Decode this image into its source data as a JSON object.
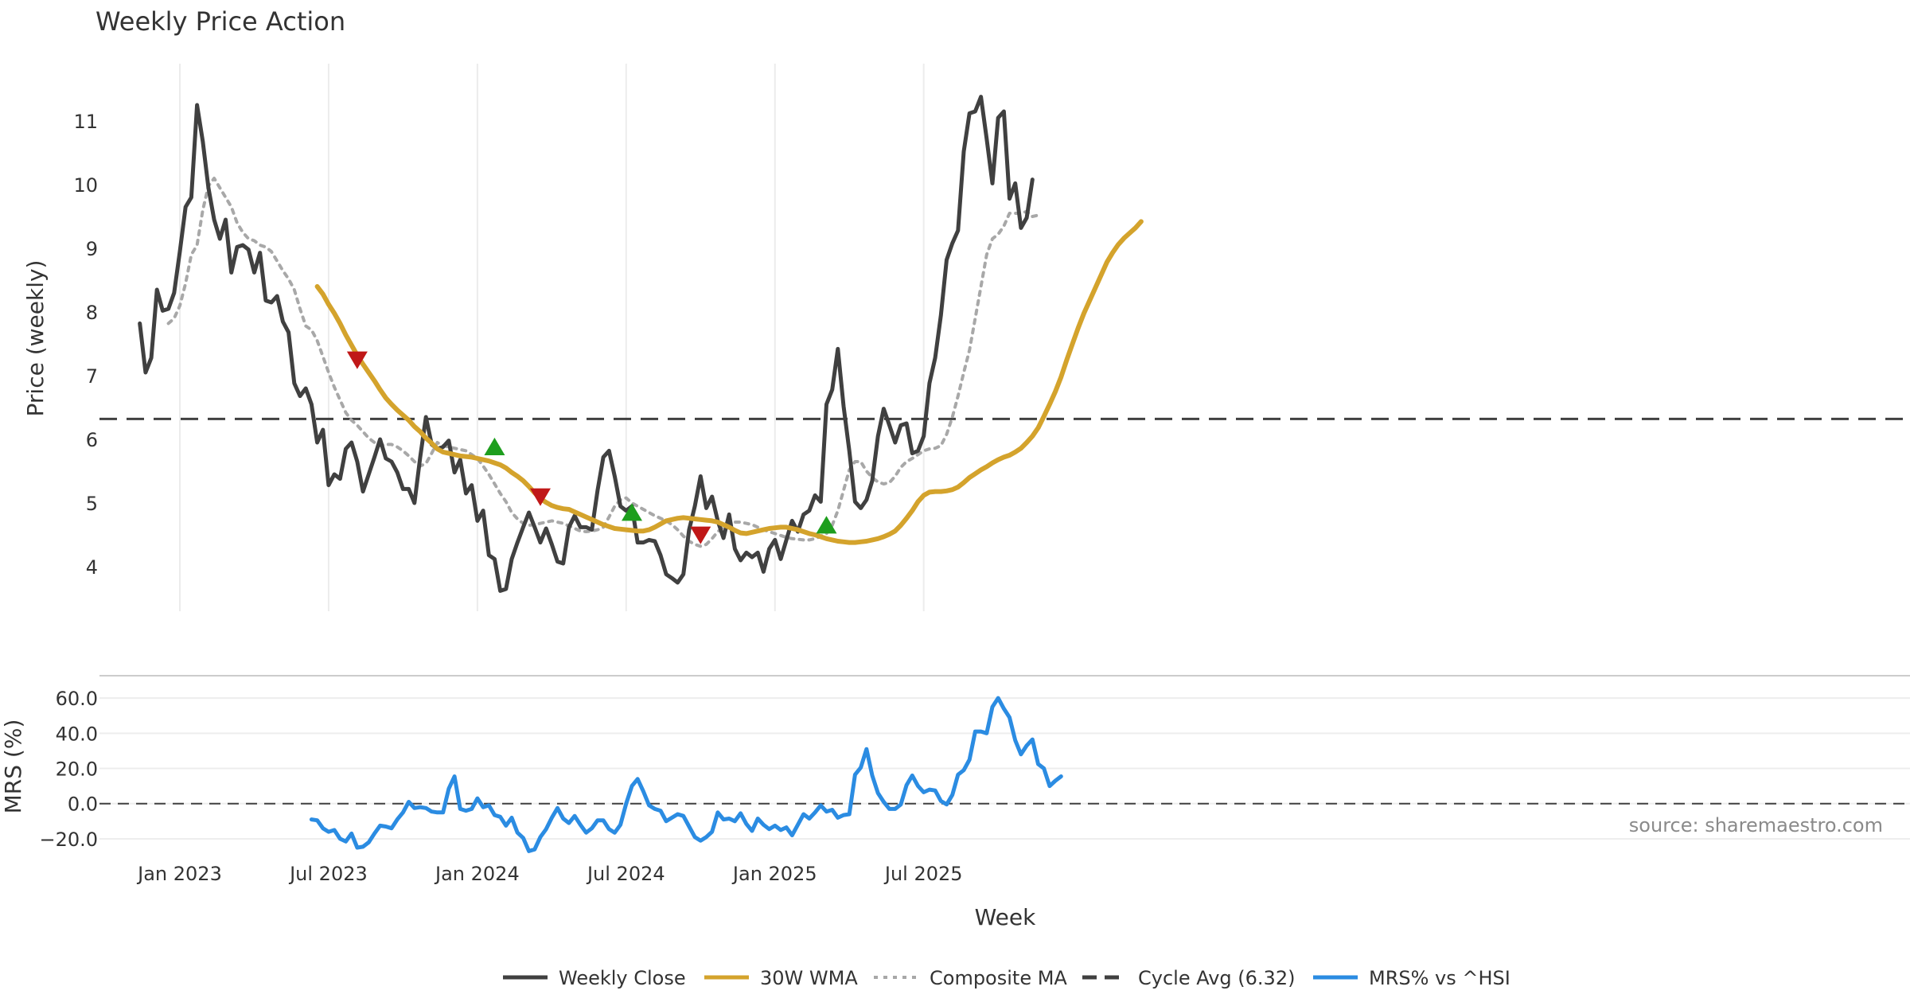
{
  "chart_data": {
    "type": "line",
    "title": "Weekly Price Action",
    "source_text": "source: sharemaestro.com",
    "xlabel": "Week",
    "x_ticks": [
      "Jan 2023",
      "Jul 2023",
      "Jan 2024",
      "Jul 2024",
      "Jan 2025",
      "Jul 2025"
    ],
    "price_panel": {
      "ylabel": "Price (weekly)",
      "ylim": [
        3.3,
        11.9
      ],
      "y_ticks": [
        "4",
        "5",
        "6",
        "7",
        "8",
        "9",
        "10",
        "11"
      ],
      "cycle_avg": 6.32,
      "series": [
        {
          "name": "Weekly Close",
          "color": "#404040",
          "start_week": -7,
          "values": [
            7.82,
            7.05,
            7.28,
            8.35,
            8.02,
            8.05,
            8.3,
            8.95,
            9.65,
            9.8,
            11.25,
            10.68,
            9.95,
            9.45,
            9.15,
            9.45,
            8.62,
            9.02,
            9.05,
            8.98,
            8.62,
            8.93,
            8.18,
            8.15,
            8.25,
            7.85,
            7.68,
            6.88,
            6.68,
            6.8,
            6.55,
            5.95,
            6.15,
            5.28,
            5.45,
            5.38,
            5.85,
            5.95,
            5.65,
            5.18,
            5.45,
            5.72,
            6.0,
            5.7,
            5.65,
            5.48,
            5.22,
            5.22,
            5.0,
            5.72,
            6.35,
            5.92,
            5.85,
            5.88,
            5.98,
            5.48,
            5.68,
            5.15,
            5.28,
            4.72,
            4.88,
            4.18,
            4.12,
            3.62,
            3.65,
            4.12,
            4.38,
            4.62,
            4.85,
            4.62,
            4.38,
            4.6,
            4.35,
            4.08,
            4.05,
            4.62,
            4.8,
            4.62,
            4.62,
            4.58,
            5.2,
            5.72,
            5.82,
            5.42,
            4.95,
            4.88,
            4.95,
            4.38,
            4.38,
            4.42,
            4.4,
            4.18,
            3.88,
            3.82,
            3.75,
            3.88,
            4.58,
            4.95,
            5.42,
            4.92,
            5.1,
            4.72,
            4.45,
            4.82,
            4.28,
            4.1,
            4.22,
            4.15,
            4.22,
            3.92,
            4.28,
            4.42,
            4.12,
            4.42,
            4.72,
            4.55,
            4.82,
            4.88,
            5.12,
            5.02,
            6.55,
            6.78,
            7.42,
            6.52,
            5.82,
            5.02,
            4.92,
            5.05,
            5.35,
            6.05,
            6.48,
            6.22,
            5.95,
            6.22,
            6.25,
            5.78,
            5.82,
            6.05,
            6.88,
            7.28,
            7.95,
            8.82,
            9.08,
            9.28,
            10.52,
            11.12,
            11.15,
            11.38,
            10.72,
            10.02,
            11.05,
            11.15,
            9.78,
            10.02,
            9.32,
            9.48,
            10.08
          ]
        },
        {
          "name": "30W WMA",
          "color": "#D4A32C",
          "start_week": 24,
          "values": [
            8.4,
            8.28,
            8.12,
            7.98,
            7.82,
            7.64,
            7.48,
            7.32,
            7.18,
            7.05,
            6.92,
            6.78,
            6.65,
            6.55,
            6.46,
            6.38,
            6.3,
            6.2,
            6.12,
            6.02,
            5.94,
            5.85,
            5.8,
            5.78,
            5.76,
            5.74,
            5.73,
            5.72,
            5.7,
            5.68,
            5.66,
            5.63,
            5.6,
            5.55,
            5.48,
            5.42,
            5.35,
            5.26,
            5.16,
            5.07,
            5.01,
            4.96,
            4.93,
            4.91,
            4.9,
            4.86,
            4.82,
            4.78,
            4.74,
            4.7,
            4.66,
            4.63,
            4.6,
            4.59,
            4.58,
            4.57,
            4.56,
            4.56,
            4.58,
            4.62,
            4.67,
            4.72,
            4.74,
            4.76,
            4.77,
            4.76,
            4.75,
            4.74,
            4.73,
            4.72,
            4.7,
            4.66,
            4.62,
            4.57,
            4.53,
            4.52,
            4.54,
            4.56,
            4.58,
            4.6,
            4.61,
            4.62,
            4.62,
            4.6,
            4.58,
            4.55,
            4.52,
            4.5,
            4.47,
            4.44,
            4.42,
            4.4,
            4.39,
            4.38,
            4.38,
            4.39,
            4.4,
            4.42,
            4.44,
            4.47,
            4.51,
            4.56,
            4.65,
            4.76,
            4.88,
            5.02,
            5.12,
            5.17,
            5.18,
            5.18,
            5.19,
            5.21,
            5.25,
            5.32,
            5.4,
            5.46,
            5.52,
            5.57,
            5.63,
            5.68,
            5.72,
            5.75,
            5.8,
            5.86,
            5.95,
            6.05,
            6.18,
            6.36,
            6.55,
            6.75,
            6.98,
            7.25,
            7.5,
            7.75,
            7.98,
            8.18,
            8.38,
            8.58,
            8.78,
            8.93,
            9.06,
            9.16,
            9.24,
            9.32,
            9.42
          ]
        },
        {
          "name": "Composite MA",
          "color": "#A8A8A8",
          "start_week": -2,
          "values": [
            7.82,
            7.9,
            8.1,
            8.45,
            8.9,
            9.05,
            9.6,
            9.98,
            10.1,
            9.95,
            9.8,
            9.65,
            9.4,
            9.25,
            9.15,
            9.12,
            9.05,
            9.02,
            8.95,
            8.8,
            8.65,
            8.52,
            8.35,
            8.05,
            7.78,
            7.72,
            7.55,
            7.3,
            7.05,
            6.82,
            6.62,
            6.42,
            6.3,
            6.22,
            6.12,
            6.02,
            5.95,
            5.9,
            5.92,
            5.92,
            5.88,
            5.82,
            5.74,
            5.65,
            5.58,
            5.62,
            5.78,
            5.95,
            5.9,
            5.88,
            5.86,
            5.84,
            5.82,
            5.76,
            5.7,
            5.58,
            5.45,
            5.3,
            5.15,
            5.02,
            4.85,
            4.75,
            4.68,
            4.65,
            4.66,
            4.68,
            4.7,
            4.72,
            4.7,
            4.68,
            4.64,
            4.6,
            4.56,
            4.55,
            4.56,
            4.58,
            4.62,
            4.78,
            4.95,
            5.05,
            5.08,
            5.0,
            4.95,
            4.9,
            4.85,
            4.8,
            4.76,
            4.72,
            4.66,
            4.58,
            4.48,
            4.4,
            4.35,
            4.32,
            4.35,
            4.44,
            4.55,
            4.62,
            4.68,
            4.7,
            4.7,
            4.68,
            4.66,
            4.62,
            4.58,
            4.55,
            4.52,
            4.49,
            4.46,
            4.44,
            4.43,
            4.42,
            4.42,
            4.44,
            4.48,
            4.52,
            4.65,
            4.88,
            5.2,
            5.52,
            5.65,
            5.65,
            5.5,
            5.4,
            5.33,
            5.3,
            5.32,
            5.42,
            5.56,
            5.65,
            5.7,
            5.76,
            5.82,
            5.85,
            5.86,
            5.9,
            6.08,
            6.35,
            6.68,
            7.05,
            7.4,
            7.9,
            8.4,
            8.9,
            9.15,
            9.22,
            9.35,
            9.55,
            9.55,
            9.55,
            9.58,
            9.5,
            9.52
          ]
        }
      ],
      "markers": [
        {
          "type": "sell",
          "week": 31,
          "value": 7.25,
          "color": "#C01818"
        },
        {
          "type": "buy",
          "week": 55,
          "value": 5.88,
          "color": "#1E9E1E"
        },
        {
          "type": "sell",
          "week": 63,
          "value": 5.1,
          "color": "#C01818"
        },
        {
          "type": "buy",
          "week": 79,
          "value": 4.85,
          "color": "#1E9E1E"
        },
        {
          "type": "sell",
          "week": 91,
          "value": 4.5,
          "color": "#C01818"
        },
        {
          "type": "buy",
          "week": 113,
          "value": 4.65,
          "color": "#1E9E1E"
        }
      ]
    },
    "mrs_panel": {
      "ylabel": "MRS (%)",
      "ylim": [
        -25,
        70
      ],
      "y_ticks": [
        "60.0",
        "40.0",
        "20.0",
        "0.0",
        "−20.0"
      ],
      "series": [
        {
          "name": "MRS% vs ^HSI",
          "color": "#2B8CE2",
          "start_week": 23,
          "values": [
            -9,
            -9.5,
            -14,
            -16,
            -15,
            -20,
            -21.5,
            -17,
            -25,
            -24.5,
            -22,
            -17,
            -12.5,
            -13,
            -14,
            -9,
            -5,
            1,
            -2.5,
            -2,
            -2.5,
            -4.5,
            -5,
            -5,
            8.5,
            15.5,
            -3,
            -4,
            -3,
            3,
            -2,
            -1,
            -6.5,
            -7.5,
            -12.5,
            -8,
            -16.5,
            -19.5,
            -27,
            -26,
            -19,
            -14.5,
            -8,
            -2.5,
            -8.5,
            -11,
            -7,
            -12,
            -16.5,
            -14,
            -9.5,
            -9.5,
            -14.5,
            -16.5,
            -12,
            0,
            10,
            14,
            7,
            -1,
            -3,
            -4,
            -10,
            -8,
            -6,
            -7,
            -13,
            -19,
            -21,
            -19,
            -16,
            -5,
            -9,
            -8.5,
            -10,
            -5.5,
            -11.5,
            -15.5,
            -8.5,
            -12,
            -14.5,
            -12.5,
            -15,
            -13.5,
            -18,
            -12,
            -6,
            -8.5,
            -5,
            -1,
            -4.5,
            -3.5,
            -8,
            -6.5,
            -6,
            16.5,
            20.5,
            31,
            16,
            6,
            1,
            -3,
            -3,
            -0.5,
            10.5,
            16,
            10,
            6.5,
            8,
            7.5,
            1.5,
            -0.5,
            5,
            16.5,
            19,
            25,
            41,
            41,
            40,
            55,
            60,
            54,
            49,
            36,
            28,
            33,
            36.5,
            22.5,
            20,
            10,
            13,
            15.5
          ]
        }
      ]
    },
    "legend": [
      {
        "label": "Weekly Close",
        "color": "#404040",
        "style": "solid"
      },
      {
        "label": "30W WMA",
        "color": "#D4A32C",
        "style": "solid"
      },
      {
        "label": "Composite MA",
        "color": "#A8A8A8",
        "style": "dotted"
      },
      {
        "label": "Cycle Avg (6.32)",
        "color": "#404040",
        "style": "dashed"
      },
      {
        "label": "MRS% vs ^HSI",
        "color": "#2B8CE2",
        "style": "solid"
      }
    ]
  }
}
